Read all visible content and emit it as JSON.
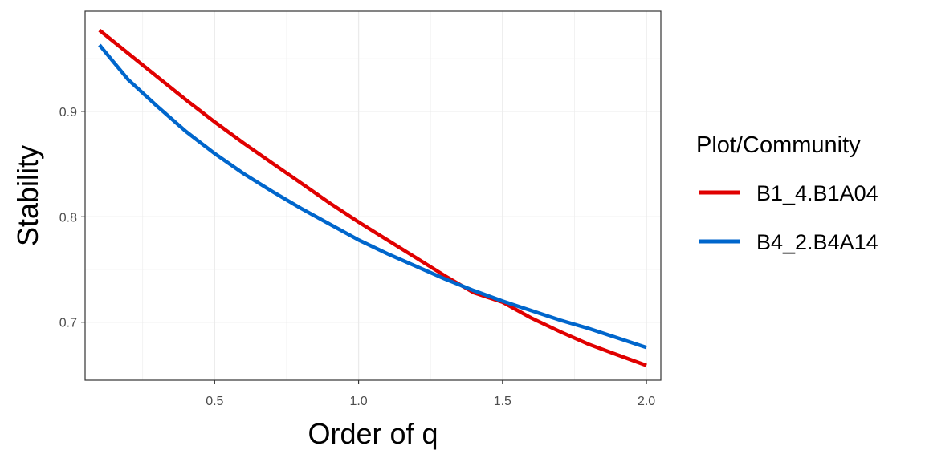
{
  "chart_data": {
    "type": "line",
    "title": "",
    "xlabel": "Order of q",
    "ylabel": "Stability",
    "xlim": [
      0.05,
      2.05
    ],
    "ylim": [
      0.645,
      0.995
    ],
    "xticks": [
      0.5,
      1.0,
      1.5,
      2.0
    ],
    "xtick_labels": [
      "0.5",
      "1.0",
      "1.5",
      "2.0"
    ],
    "yticks": [
      0.7,
      0.8,
      0.9
    ],
    "ytick_labels": [
      "0.7",
      "0.8",
      "0.9"
    ],
    "grid": true,
    "legend": {
      "title": "Plot/Community",
      "position": "right"
    },
    "series": [
      {
        "name": "B1_4.B1A04",
        "color": "#e00000",
        "x": [
          0.1,
          0.2,
          0.3,
          0.4,
          0.5,
          0.6,
          0.7,
          0.8,
          0.9,
          1.0,
          1.1,
          1.2,
          1.3,
          1.4,
          1.5,
          1.6,
          1.7,
          1.8,
          1.9,
          2.0
        ],
        "y": [
          0.977,
          0.955,
          0.933,
          0.911,
          0.89,
          0.87,
          0.851,
          0.832,
          0.813,
          0.795,
          0.778,
          0.761,
          0.744,
          0.728,
          0.719,
          0.704,
          0.691,
          0.679,
          0.669,
          0.659
        ]
      },
      {
        "name": "B4_2.B4A14",
        "color": "#0066cc",
        "x": [
          0.1,
          0.2,
          0.3,
          0.4,
          0.5,
          0.6,
          0.7,
          0.8,
          0.9,
          1.0,
          1.1,
          1.2,
          1.3,
          1.4,
          1.5,
          1.6,
          1.7,
          1.8,
          1.9,
          2.0
        ],
        "y": [
          0.963,
          0.93,
          0.905,
          0.881,
          0.86,
          0.841,
          0.824,
          0.808,
          0.793,
          0.778,
          0.765,
          0.753,
          0.741,
          0.73,
          0.72,
          0.711,
          0.702,
          0.694,
          0.685,
          0.676
        ]
      }
    ]
  }
}
